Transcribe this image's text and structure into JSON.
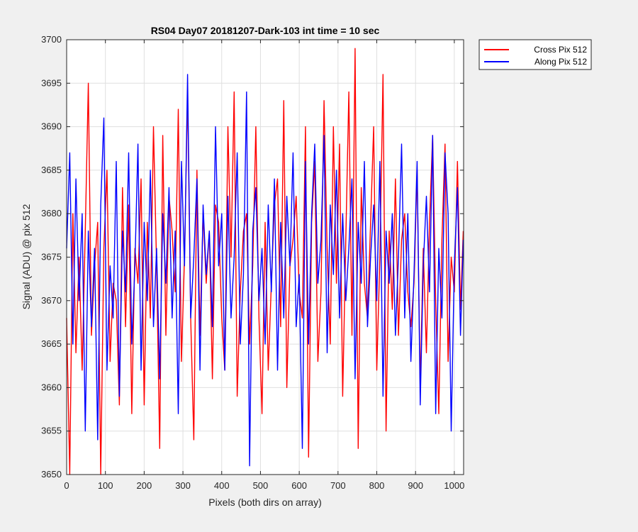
{
  "chart_data": {
    "type": "line",
    "title": "RS04 Day07 20181207-Dark-103 int time = 10 sec",
    "xlabel": "Pixels (both dirs on array)",
    "ylabel": "Signal (ADU) @ pix 512",
    "xlim": [
      0,
      1024
    ],
    "ylim": [
      3650,
      3700
    ],
    "xticks": [
      0,
      100,
      200,
      300,
      400,
      500,
      600,
      700,
      800,
      900,
      1000
    ],
    "yticks": [
      3650,
      3655,
      3660,
      3665,
      3670,
      3675,
      3680,
      3685,
      3690,
      3695,
      3700
    ],
    "grid": true,
    "legend_position": "outside-top-right",
    "series": [
      {
        "name": "Cross Pix 512",
        "color": "#ff0000",
        "x": [
          0,
          8,
          16,
          24,
          32,
          40,
          48,
          56,
          64,
          72,
          80,
          88,
          96,
          104,
          112,
          120,
          128,
          136,
          144,
          152,
          160,
          168,
          176,
          184,
          192,
          200,
          208,
          216,
          224,
          232,
          240,
          248,
          256,
          264,
          272,
          280,
          288,
          296,
          304,
          312,
          320,
          328,
          336,
          344,
          352,
          360,
          368,
          376,
          384,
          392,
          400,
          408,
          416,
          424,
          432,
          440,
          448,
          456,
          464,
          472,
          480,
          488,
          496,
          504,
          512,
          520,
          528,
          536,
          544,
          552,
          560,
          568,
          576,
          584,
          592,
          600,
          608,
          616,
          624,
          632,
          640,
          648,
          656,
          664,
          672,
          680,
          688,
          696,
          704,
          712,
          720,
          728,
          736,
          744,
          752,
          760,
          768,
          776,
          784,
          792,
          800,
          808,
          816,
          824,
          832,
          840,
          848,
          856,
          864,
          872,
          880,
          888,
          896,
          904,
          912,
          920,
          928,
          936,
          944,
          952,
          960,
          968,
          976,
          984,
          992,
          1000,
          1008,
          1016,
          1023
        ],
        "y": [
          3668,
          3650,
          3680,
          3664,
          3675,
          3662,
          3678,
          3695,
          3666,
          3674,
          3679,
          3650,
          3676,
          3685,
          3663,
          3672,
          3670,
          3658,
          3683,
          3667,
          3681,
          3657,
          3676,
          3672,
          3684,
          3658,
          3679,
          3668,
          3690,
          3674,
          3653,
          3689,
          3666,
          3682,
          3678,
          3671,
          3692,
          3663,
          3675,
          3694,
          3668,
          3654,
          3685,
          3666,
          3680,
          3672,
          3678,
          3661,
          3681,
          3679,
          3668,
          3662,
          3690,
          3675,
          3694,
          3659,
          3671,
          3678,
          3680,
          3665,
          3674,
          3690,
          3668,
          3657,
          3679,
          3662,
          3672,
          3681,
          3684,
          3667,
          3693,
          3660,
          3674,
          3677,
          3682,
          3671,
          3668,
          3690,
          3652,
          3679,
          3686,
          3663,
          3671,
          3693,
          3676,
          3665,
          3690,
          3672,
          3688,
          3659,
          3677,
          3694,
          3666,
          3699,
          3653,
          3683,
          3672,
          3668,
          3679,
          3690,
          3662,
          3675,
          3696,
          3655,
          3678,
          3669,
          3684,
          3666,
          3677,
          3680,
          3671,
          3667,
          3672,
          3685,
          3660,
          3676,
          3664,
          3679,
          3689,
          3670,
          3657,
          3677,
          3688,
          3663,
          3675,
          3671,
          3686,
          3669,
          3678
        ]
      },
      {
        "name": "Along Pix 512",
        "color": "#0000ff",
        "x": [
          0,
          8,
          16,
          24,
          32,
          40,
          48,
          56,
          64,
          72,
          80,
          88,
          96,
          104,
          112,
          120,
          128,
          136,
          144,
          152,
          160,
          168,
          176,
          184,
          192,
          200,
          208,
          216,
          224,
          232,
          240,
          248,
          256,
          264,
          272,
          280,
          288,
          296,
          304,
          312,
          320,
          328,
          336,
          344,
          352,
          360,
          368,
          376,
          384,
          392,
          400,
          408,
          416,
          424,
          432,
          440,
          448,
          456,
          464,
          472,
          480,
          488,
          496,
          504,
          512,
          520,
          528,
          536,
          544,
          552,
          560,
          568,
          576,
          584,
          592,
          600,
          608,
          616,
          624,
          632,
          640,
          648,
          656,
          664,
          672,
          680,
          688,
          696,
          704,
          712,
          720,
          728,
          736,
          744,
          752,
          760,
          768,
          776,
          784,
          792,
          800,
          808,
          816,
          824,
          832,
          840,
          848,
          856,
          864,
          872,
          880,
          888,
          896,
          904,
          912,
          920,
          928,
          936,
          944,
          952,
          960,
          968,
          976,
          984,
          992,
          1000,
          1008,
          1016,
          1023
        ],
        "y": [
          3676,
          3687,
          3665,
          3684,
          3670,
          3680,
          3655,
          3678,
          3667,
          3676,
          3654,
          3681,
          3691,
          3662,
          3674,
          3668,
          3686,
          3659,
          3678,
          3671,
          3687,
          3665,
          3674,
          3688,
          3662,
          3679,
          3670,
          3685,
          3667,
          3676,
          3661,
          3680,
          3672,
          3683,
          3668,
          3678,
          3657,
          3686,
          3674,
          3696,
          3668,
          3675,
          3684,
          3662,
          3681,
          3673,
          3678,
          3667,
          3690,
          3674,
          3680,
          3662,
          3682,
          3668,
          3675,
          3687,
          3665,
          3673,
          3694,
          3651,
          3678,
          3683,
          3670,
          3676,
          3665,
          3681,
          3671,
          3684,
          3662,
          3679,
          3668,
          3682,
          3674,
          3687,
          3667,
          3673,
          3653,
          3686,
          3665,
          3680,
          3688,
          3672,
          3677,
          3689,
          3664,
          3681,
          3673,
          3685,
          3668,
          3680,
          3670,
          3676,
          3684,
          3661,
          3679,
          3672,
          3686,
          3667,
          3675,
          3681,
          3670,
          3686,
          3659,
          3678,
          3672,
          3680,
          3666,
          3675,
          3688,
          3668,
          3680,
          3663,
          3673,
          3686,
          3658,
          3674,
          3682,
          3671,
          3689,
          3657,
          3676,
          3668,
          3687,
          3680,
          3655,
          3674,
          3683,
          3666,
          3677
        ]
      }
    ]
  }
}
